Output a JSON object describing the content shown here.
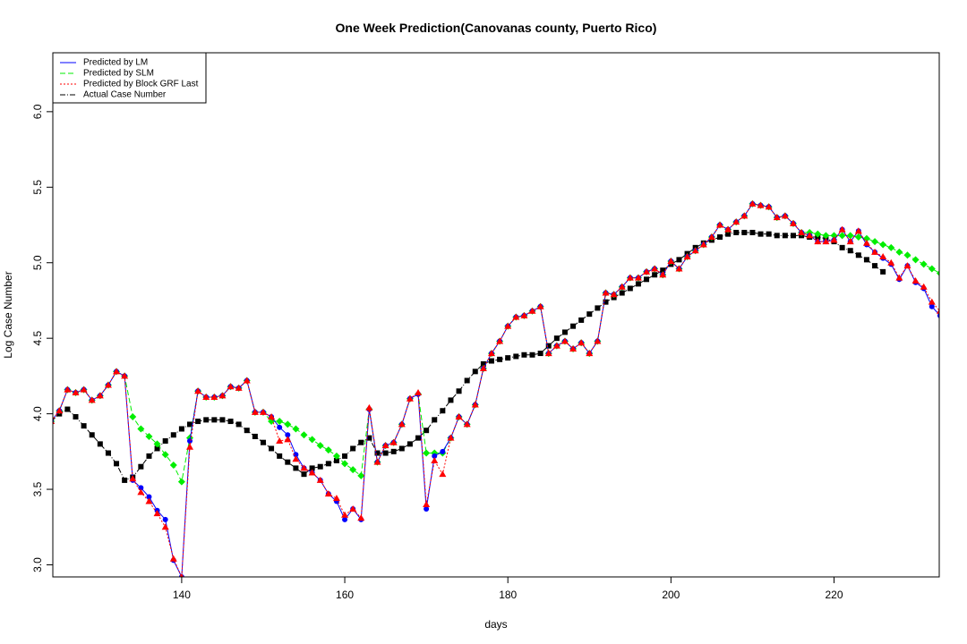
{
  "chart_data": {
    "type": "line",
    "title": "One Week Prediction(Canovanas county, Puerto Rico)",
    "xlabel": "days",
    "ylabel": "Log Case Number",
    "xlim": [
      124.2,
      232.9
    ],
    "ylim": [
      2.92,
      6.39
    ],
    "xticks": [
      140,
      160,
      180,
      200,
      220
    ],
    "yticks": [
      {
        "value": 3,
        "label": "3.0"
      },
      {
        "value": 3.5,
        "label": "3.5"
      },
      {
        "value": 4,
        "label": "4.0"
      },
      {
        "value": 4.5,
        "label": "4.5"
      },
      {
        "value": 5,
        "label": "5.0"
      },
      {
        "value": 5.5,
        "label": "5.5"
      },
      {
        "value": 6,
        "label": "6.0"
      }
    ],
    "legend": "top-left",
    "x": [
      124,
      125,
      126,
      127,
      128,
      129,
      130,
      131,
      132,
      133,
      134,
      135,
      136,
      137,
      138,
      139,
      140,
      141,
      142,
      143,
      144,
      145,
      146,
      147,
      148,
      149,
      150,
      151,
      152,
      153,
      154,
      155,
      156,
      157,
      158,
      159,
      160,
      161,
      162,
      163,
      164,
      165,
      166,
      167,
      168,
      169,
      170,
      171,
      172,
      173,
      174,
      175,
      176,
      177,
      178,
      179,
      180,
      181,
      182,
      183,
      184,
      185,
      186,
      187,
      188,
      189,
      190,
      191,
      192,
      193,
      194,
      195,
      196,
      197,
      198,
      199,
      200,
      201,
      202,
      203,
      204,
      205,
      206,
      207,
      208,
      209,
      210,
      211,
      212,
      213,
      214,
      215,
      216,
      217,
      218,
      219,
      220,
      221,
      222,
      223,
      224,
      225,
      226,
      227,
      228,
      229,
      230,
      231,
      232,
      233
    ],
    "series": [
      {
        "name": "Predicted by LM",
        "color": "#0000ff",
        "dash": "solid",
        "marker": "circle",
        "values": [
          3.95,
          4.02,
          4.16,
          4.14,
          4.16,
          4.09,
          4.12,
          4.19,
          4.28,
          4.25,
          3.56,
          3.51,
          3.45,
          3.36,
          3.3,
          3.03,
          2.92,
          3.82,
          4.15,
          4.11,
          4.11,
          4.12,
          4.18,
          4.17,
          4.22,
          4.01,
          4.01,
          3.98,
          3.91,
          3.86,
          3.73,
          3.64,
          3.61,
          3.56,
          3.47,
          3.42,
          3.3,
          3.37,
          3.3,
          4.03,
          3.68,
          3.79,
          3.81,
          3.93,
          4.1,
          4.13,
          3.37,
          3.72,
          3.75,
          3.84,
          3.98,
          3.93,
          4.06,
          4.3,
          4.4,
          4.48,
          4.58,
          4.64,
          4.65,
          4.68,
          4.71,
          4.4,
          4.45,
          4.48,
          4.43,
          4.47,
          4.4,
          4.48,
          4.8,
          4.79,
          4.84,
          4.9,
          4.9,
          4.94,
          4.96,
          4.92,
          5.01,
          4.96,
          5.04,
          5.08,
          5.12,
          5.17,
          5.25,
          5.22,
          5.27,
          5.31,
          5.39,
          5.38,
          5.37,
          5.3,
          5.31,
          5.26,
          5.2,
          5.18,
          5.14,
          5.14,
          5.15,
          5.22,
          5.14,
          5.21,
          5.12,
          5.07,
          5.03,
          4.99,
          4.89,
          4.98,
          4.87,
          4.83,
          4.71,
          4.65
        ]
      },
      {
        "name": "Predicted by SLM",
        "color": "#00ee00",
        "dash": "dashed",
        "marker": "diamond",
        "values": [
          3.95,
          4.02,
          4.16,
          4.14,
          4.16,
          4.09,
          4.12,
          4.19,
          4.28,
          4.25,
          3.98,
          3.9,
          3.85,
          3.8,
          3.73,
          3.66,
          3.55,
          3.84,
          4.15,
          4.11,
          4.11,
          4.12,
          4.18,
          4.17,
          4.22,
          4.01,
          4.01,
          3.95,
          3.95,
          3.93,
          3.9,
          3.86,
          3.83,
          3.79,
          3.76,
          3.72,
          3.67,
          3.63,
          3.59,
          4.03,
          3.68,
          3.79,
          3.81,
          3.93,
          4.1,
          4.13,
          3.74,
          3.74,
          3.74,
          3.84,
          3.98,
          3.93,
          4.06,
          4.3,
          4.4,
          4.48,
          4.58,
          4.64,
          4.65,
          4.68,
          4.71,
          4.4,
          4.45,
          4.48,
          4.43,
          4.47,
          4.4,
          4.48,
          4.8,
          4.79,
          4.84,
          4.9,
          4.9,
          4.94,
          4.96,
          4.92,
          5.01,
          4.96,
          5.04,
          5.08,
          5.12,
          5.17,
          5.25,
          5.22,
          5.27,
          5.31,
          5.39,
          5.38,
          5.37,
          5.3,
          5.31,
          5.26,
          5.2,
          5.2,
          5.19,
          5.18,
          5.18,
          5.18,
          5.18,
          5.17,
          5.16,
          5.14,
          5.12,
          5.1,
          5.07,
          5.05,
          5.02,
          4.99,
          4.96,
          4.93
        ]
      },
      {
        "name": "Predicted by Block GRF Last",
        "color": "#ff0000",
        "dash": "dotted",
        "marker": "triangle",
        "values": [
          3.95,
          4.02,
          4.16,
          4.14,
          4.16,
          4.09,
          4.12,
          4.19,
          4.28,
          4.25,
          3.57,
          3.48,
          3.42,
          3.34,
          3.25,
          3.04,
          2.92,
          3.78,
          4.15,
          4.11,
          4.11,
          4.12,
          4.18,
          4.17,
          4.22,
          4.01,
          4.01,
          3.98,
          3.82,
          3.83,
          3.7,
          3.64,
          3.61,
          3.56,
          3.47,
          3.44,
          3.33,
          3.37,
          3.31,
          4.04,
          3.68,
          3.79,
          3.81,
          3.93,
          4.1,
          4.14,
          3.4,
          3.69,
          3.6,
          3.84,
          3.98,
          3.93,
          4.06,
          4.3,
          4.4,
          4.48,
          4.58,
          4.64,
          4.65,
          4.68,
          4.71,
          4.4,
          4.45,
          4.48,
          4.43,
          4.47,
          4.4,
          4.48,
          4.8,
          4.79,
          4.84,
          4.9,
          4.9,
          4.94,
          4.96,
          4.92,
          5.01,
          4.96,
          5.04,
          5.08,
          5.12,
          5.17,
          5.25,
          5.22,
          5.27,
          5.31,
          5.39,
          5.38,
          5.37,
          5.3,
          5.31,
          5.26,
          5.2,
          5.18,
          5.14,
          5.14,
          5.15,
          5.22,
          5.14,
          5.21,
          5.13,
          5.07,
          5.04,
          5.0,
          4.9,
          4.98,
          4.88,
          4.84,
          4.74,
          4.68
        ]
      },
      {
        "name": "Actual Case Number",
        "color": "#000000",
        "dash": "dashdot",
        "marker": "square",
        "values": [
          3.95,
          4.0,
          4.03,
          3.98,
          3.92,
          3.86,
          3.8,
          3.74,
          3.67,
          3.56,
          3.58,
          3.65,
          3.72,
          3.77,
          3.82,
          3.86,
          3.9,
          3.93,
          3.95,
          3.96,
          3.96,
          3.96,
          3.95,
          3.93,
          3.89,
          3.85,
          3.81,
          3.77,
          3.72,
          3.68,
          3.64,
          3.6,
          3.64,
          3.65,
          3.67,
          3.69,
          3.72,
          3.77,
          3.81,
          3.84,
          3.74,
          3.74,
          3.75,
          3.77,
          3.8,
          3.84,
          3.89,
          3.96,
          4.02,
          4.09,
          4.15,
          4.22,
          4.28,
          4.33,
          4.35,
          4.36,
          4.37,
          4.38,
          4.39,
          4.39,
          4.4,
          4.45,
          4.5,
          4.54,
          4.58,
          4.62,
          4.66,
          4.7,
          4.74,
          4.77,
          4.8,
          4.83,
          4.86,
          4.89,
          4.92,
          4.95,
          4.99,
          5.02,
          5.06,
          5.1,
          5.13,
          5.15,
          5.17,
          5.19,
          5.2,
          5.2,
          5.2,
          5.19,
          5.19,
          5.18,
          5.18,
          5.18,
          5.18,
          5.17,
          5.17,
          5.16,
          5.14,
          5.1,
          5.08,
          5.05,
          5.02,
          4.98,
          4.94,
          null,
          null,
          null,
          null,
          null,
          null,
          null
        ]
      }
    ]
  }
}
